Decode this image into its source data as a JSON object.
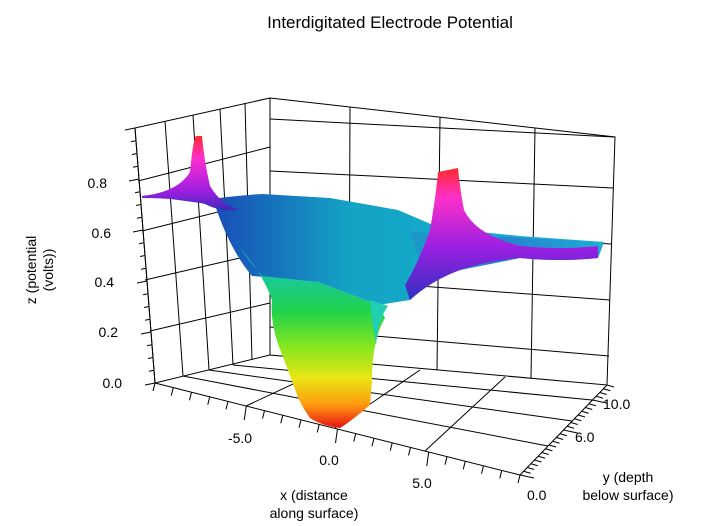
{
  "chart_data": {
    "type": "surface",
    "title": "Interdigitated Electrode Potential",
    "x_axis": {
      "label": [
        "x (distance",
        "along surface)"
      ],
      "ticks": [
        {
          "value": -5,
          "label": "-5.0"
        },
        {
          "value": 0,
          "label": "0.0"
        },
        {
          "value": 5,
          "label": "5.0"
        }
      ],
      "range": [
        -10,
        10
      ]
    },
    "y_axis": {
      "label": [
        "y (depth",
        "below surface)"
      ],
      "ticks": [
        {
          "value": 0,
          "label": "0.0"
        },
        {
          "value": 6,
          "label": "6.0"
        },
        {
          "value": 10,
          "label": "10.0"
        }
      ],
      "range": [
        0,
        12
      ]
    },
    "z_axis": {
      "label": [
        "z (potential",
        "(volts))"
      ],
      "ticks": [
        {
          "value": 0,
          "label": "0.0"
        },
        {
          "value": 0.2,
          "label": "0.2"
        },
        {
          "value": 0.4,
          "label": "0.4"
        },
        {
          "value": 0.6,
          "label": "0.6"
        },
        {
          "value": 0.8,
          "label": "0.8"
        }
      ],
      "range": [
        0,
        1
      ]
    },
    "surface_features": [
      {
        "name": "electrode-peak",
        "x": -7.5,
        "y": 0,
        "z": 0.95
      },
      {
        "name": "electrode-peak",
        "x": 7.5,
        "y": 0,
        "z": 0.95
      },
      {
        "name": "electrode-trough",
        "x": 0,
        "y": 0,
        "z": 0.0
      }
    ],
    "background_potential": 0.62,
    "colormap": "rainbow (red low, blue mid, magenta high)",
    "grid": true
  }
}
